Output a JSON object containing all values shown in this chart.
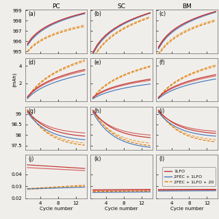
{
  "col_titles": [
    "PC",
    "SC",
    "BM"
  ],
  "panel_labels": [
    [
      "(a)",
      "(b)",
      "(c)"
    ],
    [
      "(d)",
      "(e)",
      "(f)"
    ],
    [
      "(g)",
      "(h)",
      "(i)"
    ],
    [
      "(j)",
      "(k)",
      "(l)"
    ]
  ],
  "x": [
    1,
    2,
    3,
    4,
    5,
    6,
    7,
    8,
    9,
    10,
    11,
    12,
    13,
    14
  ],
  "legend_labels": [
    "1LFO",
    "2FEC + 1LFO",
    "2FEC + 1LFO + 20"
  ],
  "colors": {
    "red_solid1": "#d45f5f",
    "red_solid2": "#c03030",
    "blue_solid": "#4477bb",
    "orange_dash1": "#e8a040",
    "orange_dash2": "#dd7700"
  },
  "bg_color": "#f0eeea",
  "row0": {
    "ylim": [
      994.85,
      999.05
    ],
    "yticks": [
      995,
      996,
      997,
      998,
      999
    ],
    "yticklabels": [
      "995",
      "996",
      "997",
      "998",
      "999"
    ]
  },
  "row1": {
    "ylim": [
      -0.1,
      4.9
    ],
    "yticks": [
      2,
      4
    ],
    "yticklabels": [
      "2",
      "4"
    ],
    "ylabel": "(mAh)"
  },
  "row2": {
    "ylim": [
      97.3,
      99.35
    ],
    "yticks": [
      97.5,
      98.0,
      98.5,
      99.0
    ],
    "yticklabels": [
      "97.5",
      "98",
      "98.5",
      "99"
    ]
  },
  "row3": {
    "ylim": [
      0.021,
      0.056
    ],
    "yticks": [
      0.02,
      0.03,
      0.04
    ],
    "yticklabels": [
      "0.02",
      "0.03",
      "0.04"
    ]
  }
}
